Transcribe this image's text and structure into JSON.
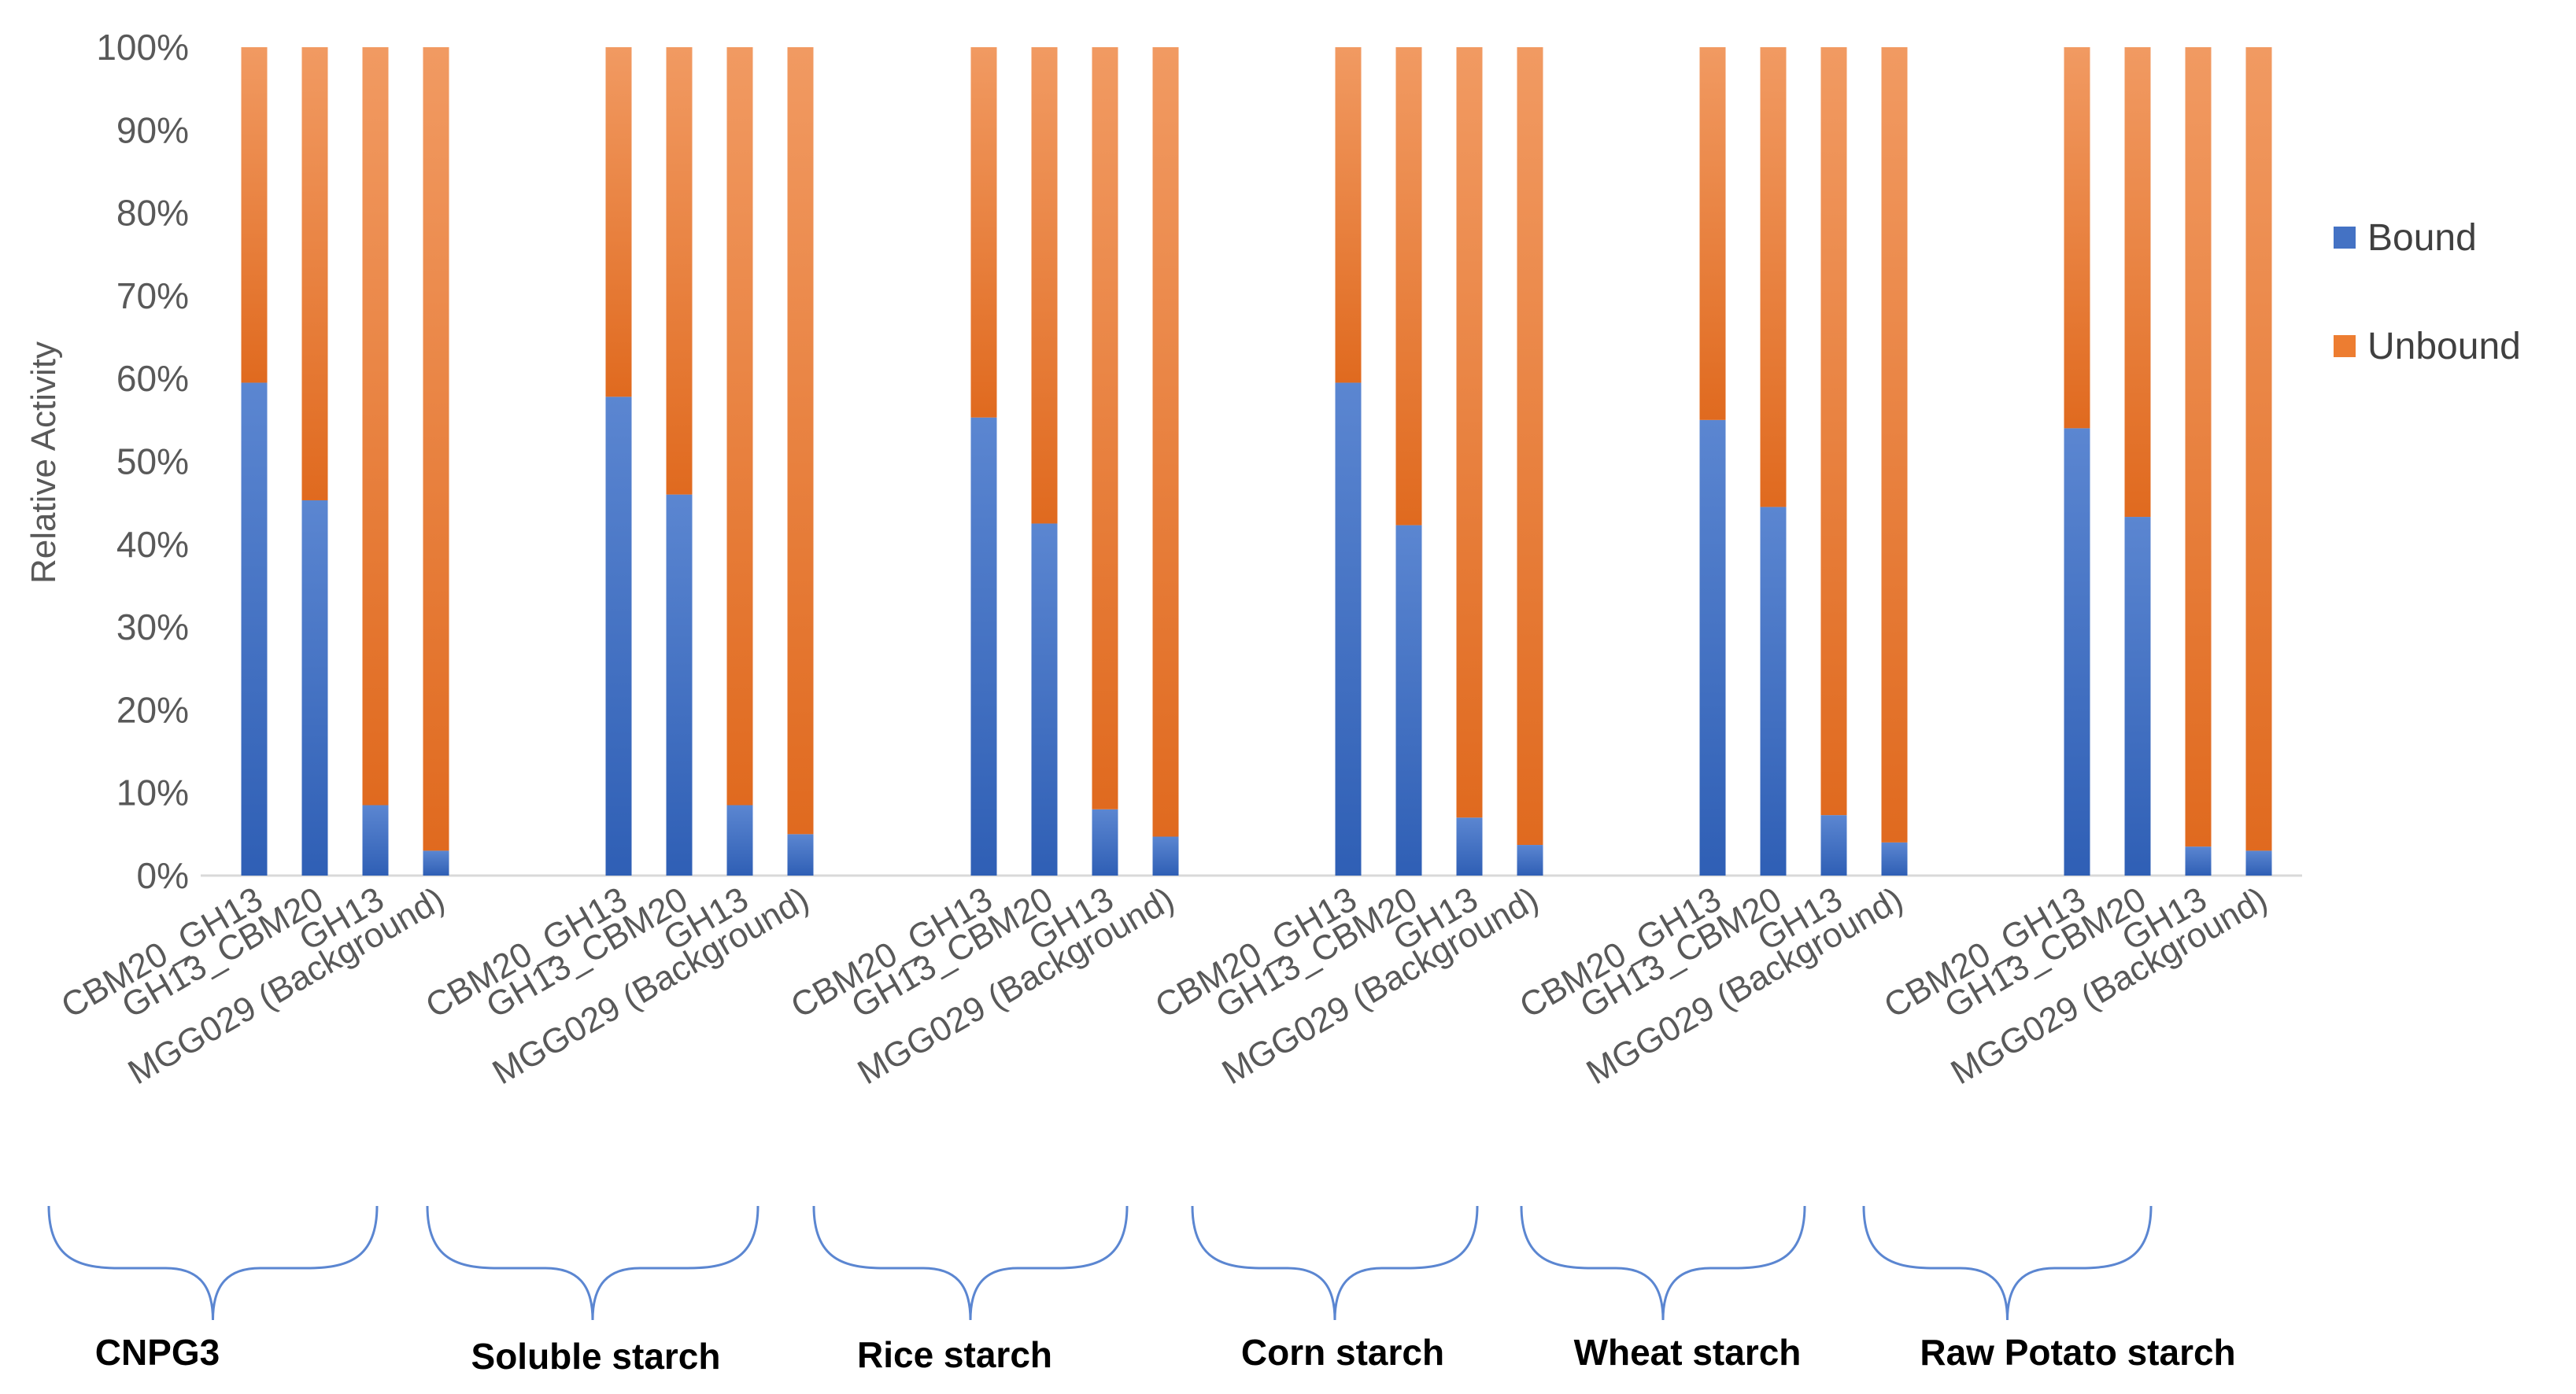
{
  "chart_data": {
    "type": "bar",
    "stacked": true,
    "percent_stacked": true,
    "title": "",
    "xlabel": "",
    "ylabel": "Relative Activity",
    "ylim": [
      0,
      100
    ],
    "y_ticks": [
      "0%",
      "10%",
      "20%",
      "30%",
      "40%",
      "50%",
      "60%",
      "70%",
      "80%",
      "90%",
      "100%"
    ],
    "legend_position": "right",
    "categories": [
      "CBM20_GH13",
      "GH13_CBM20",
      "GH13",
      "MGG029 (Background)"
    ],
    "groups": [
      "CNPG3",
      "Soluble starch",
      "Rice starch",
      "Corn starch",
      "Wheat starch",
      "Raw Potato starch"
    ],
    "series": [
      {
        "name": "Bound",
        "color": "#4472C4",
        "values": [
          [
            59.5,
            45.3,
            8.5,
            3.0
          ],
          [
            57.8,
            46.0,
            8.5,
            5.0
          ],
          [
            55.3,
            42.5,
            8.0,
            4.7
          ],
          [
            59.5,
            42.3,
            7.0,
            3.7
          ],
          [
            55.0,
            44.5,
            7.3,
            4.0
          ],
          [
            54.0,
            43.3,
            3.5,
            3.0
          ]
        ]
      },
      {
        "name": "Unbound",
        "color": "#ED7D31",
        "values": [
          [
            40.5,
            54.7,
            91.5,
            97.0
          ],
          [
            42.2,
            54.0,
            91.5,
            95.0
          ],
          [
            44.7,
            57.5,
            92.0,
            95.3
          ],
          [
            40.5,
            57.7,
            93.0,
            96.3
          ],
          [
            45.0,
            55.5,
            92.7,
            96.0
          ],
          [
            46.0,
            56.7,
            96.5,
            97.0
          ]
        ]
      }
    ]
  }
}
